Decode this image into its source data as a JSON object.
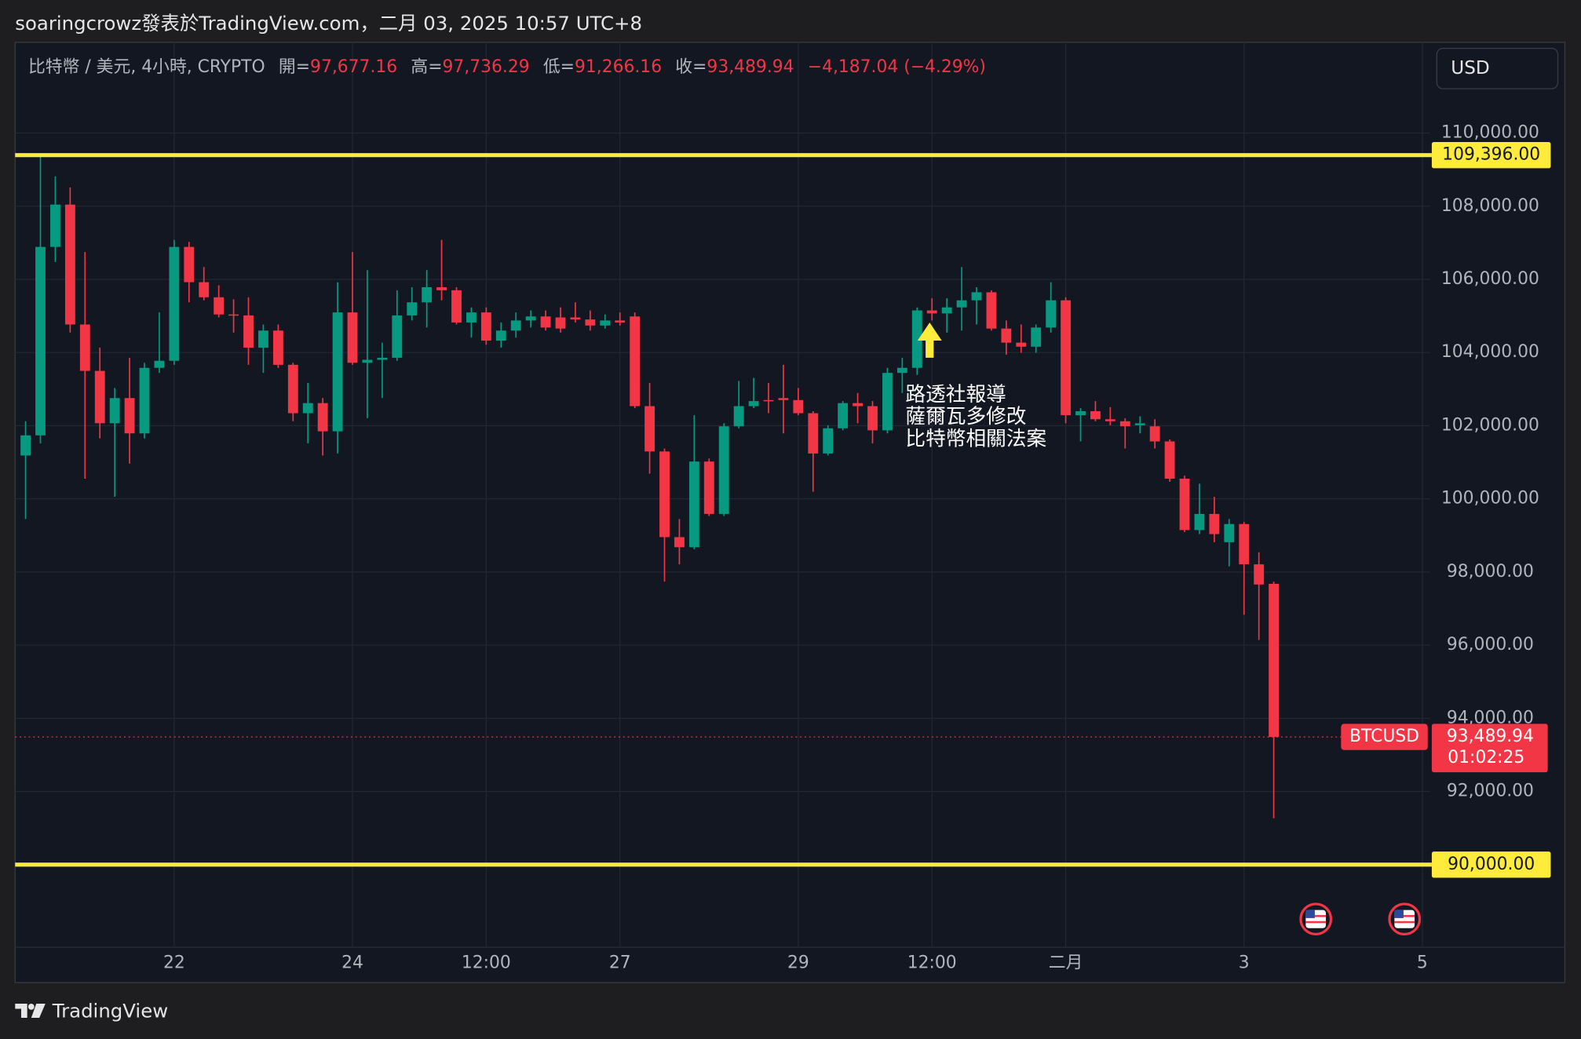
{
  "header": {
    "title": "soaringcrowz發表於TradingView.com，二月 03, 2025 10:57 UTC+8"
  },
  "legend": {
    "symbol": "比特幣 / 美元, 4小時, CRYPTO",
    "fields": [
      {
        "name": "開=",
        "value": "97,677.16"
      },
      {
        "name": "高=",
        "value": "97,736.29"
      },
      {
        "name": "低=",
        "value": "91,266.16"
      },
      {
        "name": "收=",
        "value": "93,489.94"
      }
    ],
    "change": "−4,187.04 (−4.29%)"
  },
  "currency": "USD",
  "footer": {
    "brand": "TradingView"
  },
  "chart_data": {
    "type": "candlestick",
    "categories": [
      null,
      null,
      null,
      null,
      null,
      null,
      null,
      null,
      null,
      null,
      "22",
      null,
      null,
      null,
      null,
      null,
      null,
      null,
      null,
      null,
      null,
      null,
      "24",
      null,
      null,
      null,
      null,
      null,
      null,
      null,
      null,
      "12:00",
      null,
      null,
      null,
      null,
      null,
      null,
      null,
      null,
      "27",
      null,
      null,
      null,
      null,
      null,
      null,
      null,
      null,
      null,
      null,
      null,
      "29",
      null,
      null,
      null,
      null,
      null,
      null,
      null,
      null,
      "12:00",
      null,
      null,
      null,
      null,
      null,
      null,
      null,
      null,
      "二月",
      null,
      null,
      null,
      null,
      null,
      null,
      null,
      null,
      null,
      null,
      null,
      "3",
      null,
      null,
      null,
      null,
      null,
      null,
      null,
      null,
      null,
      null,
      null,
      "5"
    ],
    "open": [
      101184,
      101735,
      106887,
      108044,
      104766,
      103498,
      102066,
      102755,
      101790,
      103581,
      103774,
      106887,
      105923,
      105510,
      105041,
      105014,
      104132,
      104600,
      103664,
      102341,
      102617,
      101846,
      105096,
      103719,
      103801,
      103857,
      105014,
      105372,
      105785,
      105702,
      104821,
      105096,
      104325,
      104600,
      104876,
      104986,
      104959,
      104959,
      104903,
      104738,
      104876,
      104986,
      102534,
      101295,
      98953,
      98678,
      101019,
      99587,
      101983,
      102534,
      102700,
      102755,
      102700,
      102341,
      101239,
      101928,
      102617,
      102534,
      101873,
      103443,
      103581,
      105151,
      105069,
      105234,
      105427,
      105647,
      104655,
      104270,
      104159,
      104683,
      105427,
      102286,
      102396,
      102176,
      102121,
      102011,
      101983,
      101570,
      100551,
      99146,
      99587,
      98815,
      99311,
      98209,
      97677.16,
      null,
      null,
      null,
      null,
      null,
      null,
      null,
      null,
      null,
      null
    ],
    "high": [
      102121,
      109396,
      108815,
      108512,
      106749,
      104132,
      103030,
      103857,
      103719,
      105096,
      107080,
      107025,
      106336,
      105840,
      105455,
      105510,
      104766,
      104766,
      103719,
      103168,
      102755,
      105923,
      106749,
      106253,
      104270,
      105702,
      105785,
      106253,
      107080,
      105785,
      105234,
      105234,
      104821,
      105096,
      105151,
      105151,
      105234,
      105372,
      105151,
      105041,
      105096,
      105096,
      103168,
      101377,
      99449,
      102286,
      101102,
      102066,
      103223,
      103306,
      103168,
      103664,
      103030,
      102396,
      102011,
      102672,
      102892,
      102672,
      103581,
      103857,
      105234,
      105482,
      105482,
      106336,
      105785,
      105702,
      104876,
      104766,
      104766,
      105923,
      105510,
      102479,
      102672,
      102507,
      102204,
      102259,
      102176,
      101625,
      100633,
      100413,
      100055,
      99449,
      99367,
      98540,
      97736.29,
      null,
      null,
      null,
      null,
      null,
      null,
      null,
      null,
      null,
      null
    ],
    "low": [
      99449,
      101515,
      106474,
      104545,
      100551,
      101653,
      100055,
      100964,
      101653,
      103443,
      103664,
      105372,
      105427,
      104959,
      104545,
      103664,
      103443,
      103581,
      102121,
      101515,
      101184,
      101239,
      103664,
      102204,
      102755,
      103774,
      104876,
      104683,
      105427,
      104766,
      104407,
      104215,
      104132,
      104407,
      104683,
      104600,
      104545,
      104821,
      104600,
      104655,
      104738,
      102479,
      100689,
      97741,
      98209,
      98623,
      99532,
      99532,
      101928,
      102479,
      102341,
      101790,
      102286,
      100193,
      101184,
      101873,
      102066,
      101515,
      101790,
      102892,
      103388,
      104876,
      104545,
      104600,
      104766,
      104600,
      103939,
      103994,
      103994,
      104545,
      102066,
      101570,
      102121,
      102011,
      101377,
      101790,
      101377,
      100468,
      99091,
      99036,
      98815,
      98154,
      96831,
      96143,
      91266.16,
      null,
      null,
      null,
      null,
      null,
      null,
      null,
      null,
      null,
      null
    ],
    "close": [
      101735,
      106887,
      108044,
      104766,
      103498,
      102066,
      102755,
      101790,
      103581,
      103774,
      106887,
      105923,
      105510,
      105041,
      105014,
      104132,
      104600,
      103664,
      102341,
      102617,
      101846,
      105096,
      103719,
      103801,
      103857,
      105014,
      105372,
      105785,
      105702,
      104821,
      105096,
      104325,
      104600,
      104876,
      104986,
      104683,
      104655,
      104903,
      104738,
      104876,
      104821,
      102534,
      101295,
      98953,
      98678,
      101019,
      99587,
      101983,
      102534,
      102672,
      102672,
      102700,
      102341,
      101239,
      101928,
      102617,
      102534,
      101873,
      103443,
      103581,
      105151,
      105069,
      105234,
      105427,
      105647,
      104655,
      104270,
      104159,
      104683,
      105427,
      102286,
      102396,
      102176,
      102121,
      101983,
      102066,
      101570,
      100551,
      99146,
      99587,
      99036,
      99311,
      98209,
      97658,
      93489.94,
      null,
      null,
      null,
      null,
      null,
      null,
      null,
      null,
      null,
      null
    ],
    "up_color": "#089981",
    "down_color": "#f23645",
    "ylim": [
      87740,
      112480
    ],
    "yticks": [
      {
        "value": 92000,
        "label": "92,000.00"
      },
      {
        "value": 94000,
        "label": "94,000.00"
      },
      {
        "value": 96000,
        "label": "96,000.00"
      },
      {
        "value": 98000,
        "label": "98,000.00"
      },
      {
        "value": 100000,
        "label": "100,000.00"
      },
      {
        "value": 102000,
        "label": "102,000.00"
      },
      {
        "value": 104000,
        "label": "104,000.00"
      },
      {
        "value": 106000,
        "label": "106,000.00"
      },
      {
        "value": 108000,
        "label": "108,000.00"
      },
      {
        "value": 110000,
        "label": "110,000.00"
      }
    ],
    "grid": true,
    "hlines": [
      {
        "value": 109396,
        "label": "109,396.00"
      },
      {
        "value": 90000,
        "label": "90,000.00"
      }
    ],
    "hline_color": "#ffeb3b",
    "last_price": {
      "symbol": "BTCUSD",
      "label": "93,489.94",
      "countdown": "01:02:25"
    },
    "annotation": {
      "lines": [
        "路透社報導",
        "薩爾瓦多修改",
        "比特幣相關法案"
      ]
    }
  }
}
